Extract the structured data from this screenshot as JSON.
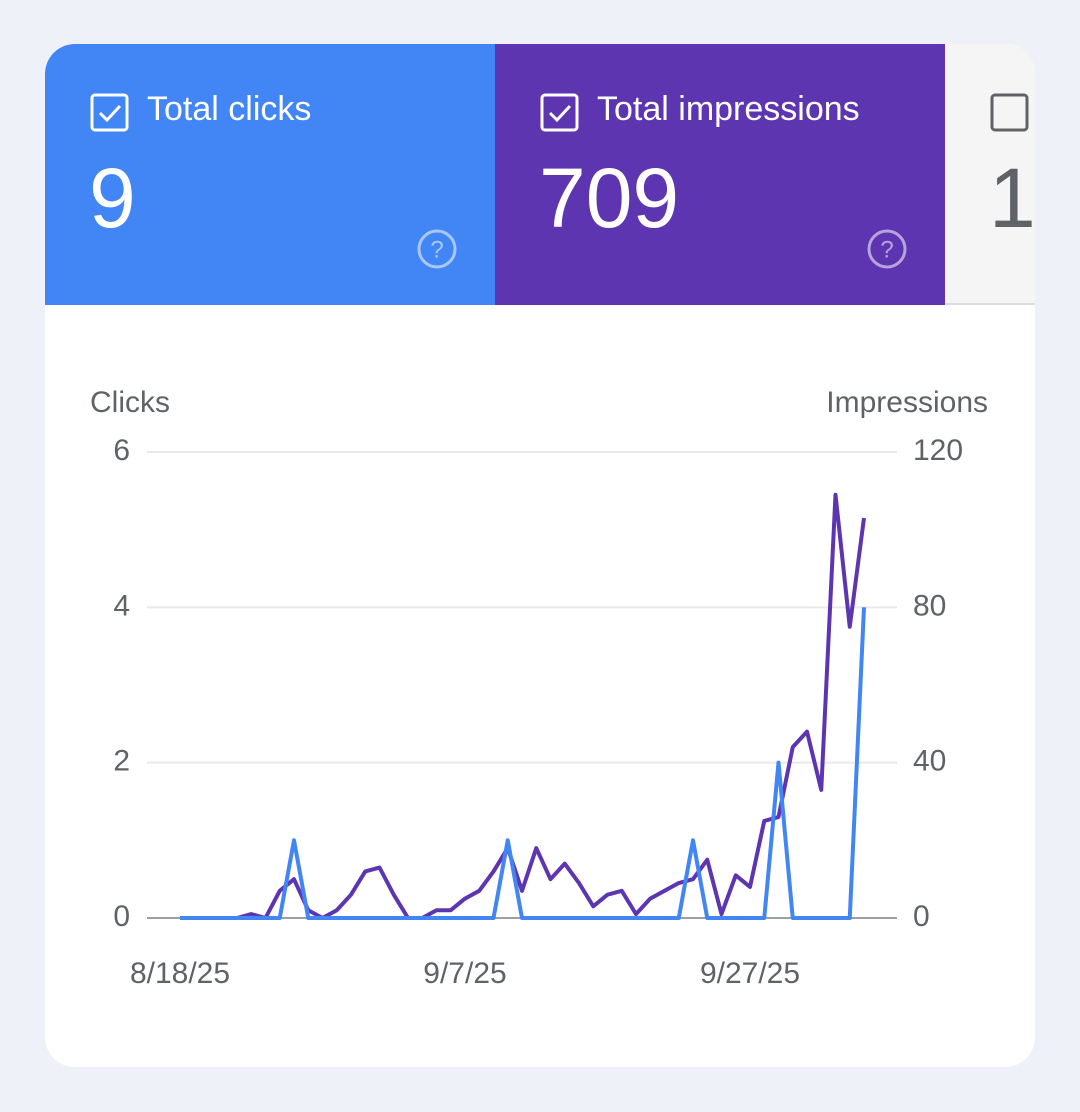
{
  "tiles": [
    {
      "label": "Total clicks",
      "value": 9,
      "checked": true,
      "color": "#4285f4"
    },
    {
      "label": "Total impressions",
      "value": 709,
      "checked": true,
      "color": "#5e35b1"
    },
    {
      "value": 1,
      "checked": false,
      "color": "#f5f5f5"
    }
  ],
  "chart_data": {
    "type": "line",
    "y_label": "Clicks",
    "y2_label": "Impressions",
    "categories": [
      "8/18/25",
      null,
      null,
      null,
      null,
      null,
      null,
      null,
      null,
      null,
      null,
      null,
      null,
      null,
      null,
      null,
      null,
      null,
      null,
      null,
      "9/7/25",
      null,
      null,
      null,
      null,
      null,
      null,
      null,
      null,
      null,
      null,
      null,
      null,
      null,
      null,
      null,
      null,
      null,
      null,
      null,
      "9/27/25",
      null,
      null,
      null,
      null,
      null,
      null,
      null,
      null
    ],
    "ylim": [
      0,
      6
    ],
    "yticks": [
      0,
      2,
      4,
      6
    ],
    "y2lim": [
      0,
      120
    ],
    "y2ticks": [
      0,
      40,
      80,
      120
    ],
    "grid": true,
    "series": [
      {
        "color": "#5e35b1",
        "axis": "y2",
        "values": [
          0,
          0,
          0,
          0,
          0,
          1,
          0,
          7,
          10,
          2,
          0,
          2,
          6,
          12,
          13,
          6,
          0,
          0,
          2,
          2,
          5,
          7,
          12,
          18,
          7,
          18,
          10,
          14,
          9,
          3,
          6,
          7,
          1,
          5,
          7,
          9,
          10,
          15,
          1,
          11,
          8,
          25,
          26,
          44,
          48,
          33,
          109,
          75,
          103
        ]
      },
      {
        "color": "#4285f4",
        "values": [
          0,
          0,
          0,
          0,
          0,
          0,
          0,
          0,
          1,
          0,
          0,
          0,
          0,
          0,
          0,
          0,
          0,
          0,
          0,
          0,
          0,
          0,
          0,
          1,
          0,
          0,
          0,
          0,
          0,
          0,
          0,
          0,
          0,
          0,
          0,
          0,
          1,
          0,
          0,
          0,
          0,
          0,
          2,
          0,
          0,
          0,
          0,
          0,
          4
        ]
      }
    ]
  }
}
